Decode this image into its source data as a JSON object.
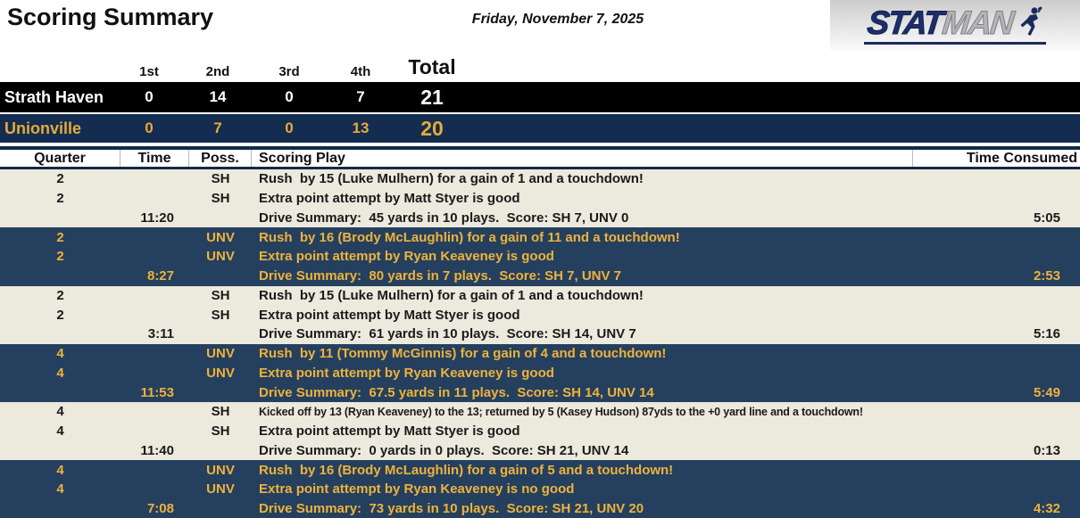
{
  "header": {
    "title": "Scoring Summary",
    "date": "Friday, November 7, 2025"
  },
  "logo": {
    "stat": "STAT",
    "man": "MAN",
    "player_icon": "football-player-icon"
  },
  "score_table": {
    "columns": [
      "1st",
      "2nd",
      "3rd",
      "4th",
      "Total"
    ],
    "rows": [
      {
        "team": "Strath Haven",
        "q": [
          "0",
          "14",
          "0",
          "7"
        ],
        "total": "21"
      },
      {
        "team": "Unionville",
        "q": [
          "0",
          "7",
          "0",
          "13"
        ],
        "total": "20"
      }
    ]
  },
  "detail_table": {
    "headers": {
      "quarter": "Quarter",
      "time": "Time",
      "poss": "Poss.",
      "play": "Scoring Play",
      "consumed": "Time Consumed"
    },
    "groups": [
      {
        "side": "sh",
        "rows": [
          {
            "type": "play",
            "quarter": "2",
            "poss": "SH",
            "play": "Rush  by 15 (Luke Mulhern) for a gain of 1 and a touchdown!"
          },
          {
            "type": "play",
            "quarter": "2",
            "poss": "SH",
            "play": "Extra point attempt by Matt Styer is good"
          },
          {
            "type": "summary",
            "time": "11:20",
            "play": "Drive Summary:  45 yards in 10 plays.  Score: SH 7, UNV 0",
            "consumed": "5:05"
          }
        ]
      },
      {
        "side": "unv",
        "rows": [
          {
            "type": "play",
            "quarter": "2",
            "poss": "UNV",
            "play": "Rush  by 16 (Brody McLaughlin) for a gain of 11 and a touchdown!"
          },
          {
            "type": "play",
            "quarter": "2",
            "poss": "UNV",
            "play": "Extra point attempt by Ryan Keaveney is good"
          },
          {
            "type": "summary",
            "time": "8:27",
            "play": "Drive Summary:  80 yards in 7 plays.  Score: SH 7, UNV 7",
            "consumed": "2:53"
          }
        ]
      },
      {
        "side": "sh",
        "rows": [
          {
            "type": "play",
            "quarter": "2",
            "poss": "SH",
            "play": "Rush  by 15 (Luke Mulhern) for a gain of 1 and a touchdown!"
          },
          {
            "type": "play",
            "quarter": "2",
            "poss": "SH",
            "play": "Extra point attempt by Matt Styer is good"
          },
          {
            "type": "summary",
            "time": "3:11",
            "play": "Drive Summary:  61 yards in 10 plays.  Score: SH 14, UNV 7",
            "consumed": "5:16"
          }
        ]
      },
      {
        "side": "unv",
        "rows": [
          {
            "type": "play",
            "quarter": "4",
            "poss": "UNV",
            "play": "Rush  by 11 (Tommy McGinnis) for a gain of 4 and a touchdown!"
          },
          {
            "type": "play",
            "quarter": "4",
            "poss": "UNV",
            "play": "Extra point attempt by Ryan Keaveney is good"
          },
          {
            "type": "summary",
            "time": "11:53",
            "play": "Drive Summary:  67.5 yards in 11 plays.  Score: SH 14, UNV 14",
            "consumed": "5:49"
          }
        ]
      },
      {
        "side": "sh",
        "rows": [
          {
            "type": "play",
            "quarter": "4",
            "poss": "SH",
            "small": true,
            "play": "Kicked off by 13 (Ryan Keaveney) to the 13; returned by 5 (Kasey Hudson) 87yds to the +0 yard line and a touchdown!"
          },
          {
            "type": "play",
            "quarter": "4",
            "poss": "SH",
            "play": "Extra point attempt by Matt Styer is good"
          },
          {
            "type": "summary",
            "time": "11:40",
            "play": "Drive Summary:  0 yards in 0 plays.  Score: SH 21, UNV 14",
            "consumed": "0:13"
          }
        ]
      },
      {
        "side": "unv",
        "rows": [
          {
            "type": "play",
            "quarter": "4",
            "poss": "UNV",
            "play": "Rush  by 16 (Brody McLaughlin) for a gain of 5 and a touchdown!"
          },
          {
            "type": "play",
            "quarter": "4",
            "poss": "UNV",
            "play": "Extra point attempt by Ryan Keaveney is no good"
          },
          {
            "type": "summary",
            "time": "7:08",
            "play": "Drive Summary:  73 yards in 10 plays.  Score: SH 21, UNV 20",
            "consumed": "4:32"
          }
        ]
      }
    ]
  },
  "colors": {
    "black_row": "#000000",
    "score_navy": "#132c50",
    "detail_navy": "#24405e",
    "gold_text": "#eeb23d",
    "beige_row": "#ece9dd",
    "header_border_navy": "#152847",
    "logo_blue": "#1c2e6b",
    "logo_gray": "#b4b4b7"
  }
}
